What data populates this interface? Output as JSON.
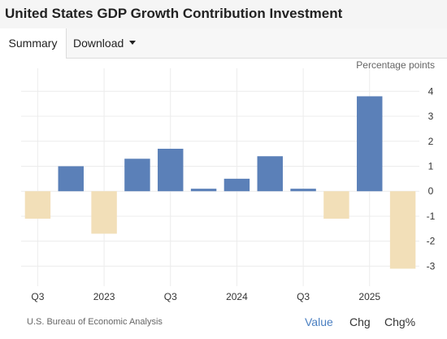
{
  "header": {
    "title": "United States GDP Growth Contribution Investment"
  },
  "tabs": {
    "summary": "Summary",
    "download": "Download"
  },
  "chart_data": {
    "type": "bar",
    "ylabel": "Percentage points",
    "ylim": [
      -3.8,
      4.4
    ],
    "y_ticks": [
      4,
      3,
      2,
      1,
      0,
      -1,
      -2,
      -3
    ],
    "x_tick_labels": [
      {
        "label": "Q3",
        "index": 0
      },
      {
        "label": "2023",
        "index": 2
      },
      {
        "label": "Q3",
        "index": 4
      },
      {
        "label": "2024",
        "index": 6
      },
      {
        "label": "Q3",
        "index": 8
      },
      {
        "label": "2025",
        "index": 10
      }
    ],
    "values": [
      -1.1,
      1.0,
      -1.7,
      1.3,
      1.7,
      0.1,
      0.5,
      1.4,
      0.1,
      -1.1,
      3.8,
      -3.1
    ],
    "colors": {
      "positive": "#5b80b8",
      "negative": "#f2dfb8"
    },
    "grid": true
  },
  "footer": {
    "source": "U.S. Bureau of Economic Analysis",
    "value_label": "Value",
    "chg_label": "Chg",
    "chgpct_label": "Chg%"
  }
}
